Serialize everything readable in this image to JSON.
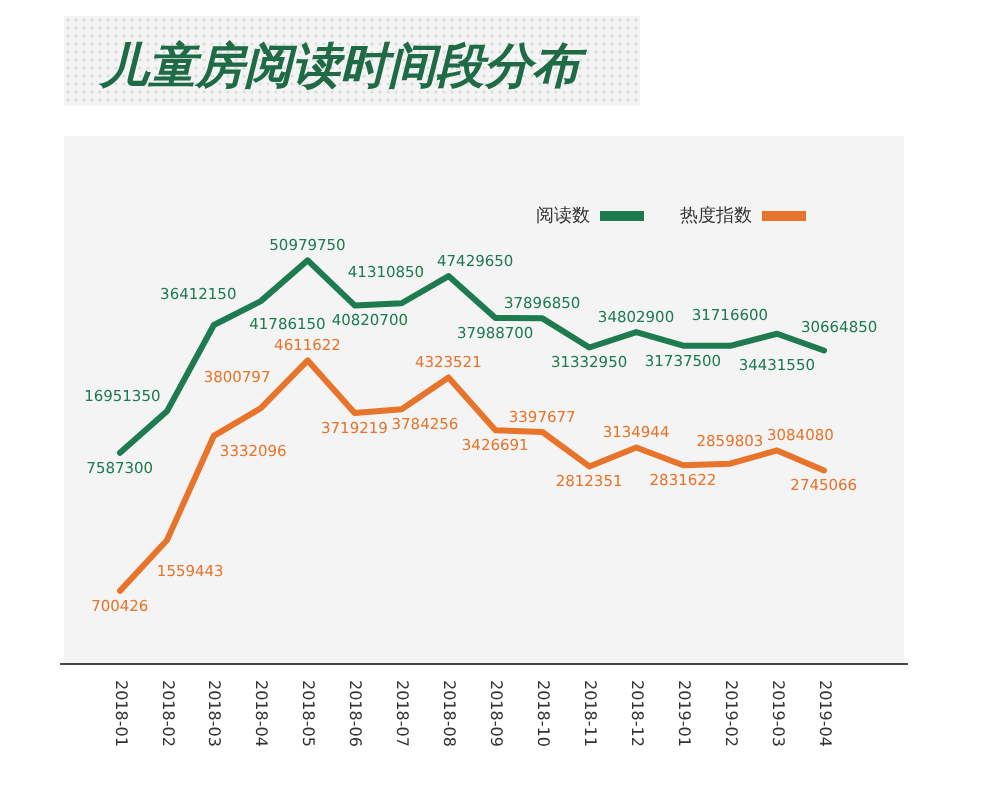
{
  "chart_data": {
    "type": "line",
    "title": "儿童房阅读时间段分布",
    "categories": [
      "2018-01",
      "2018-02",
      "2018-03",
      "2018-04",
      "2018-05",
      "2018-06",
      "2018-07",
      "2018-08",
      "2018-09",
      "2018-10",
      "2018-11",
      "2018-12",
      "2019-01",
      "2019-02",
      "2019-03",
      "2019-04"
    ],
    "series": [
      {
        "name": "阅读数",
        "color": "#1e7a4f",
        "values": [
          7587300,
          16951350,
          36412150,
          41786150,
          50979750,
          40820700,
          41310850,
          47429650,
          37988700,
          37896850,
          31332950,
          34802900,
          31737500,
          31716600,
          34431550,
          30664850
        ]
      },
      {
        "name": "热度指数",
        "color": "#e8732a",
        "axis": "y2",
        "values": [
          700426,
          1559443,
          3332096,
          3800797,
          4611622,
          3719219,
          3784256,
          4323521,
          3426691,
          3397677,
          2812351,
          3134944,
          2831622,
          2859803,
          3084080,
          2745066
        ]
      }
    ],
    "ylim": [
      -40000000,
      79000000
    ],
    "y2lim": [
      -540000,
      8420000
    ],
    "data_labels": true,
    "legend": "top right",
    "tick_labels": "x",
    "grid": false,
    "marker": "none",
    "line_style": "solid"
  }
}
